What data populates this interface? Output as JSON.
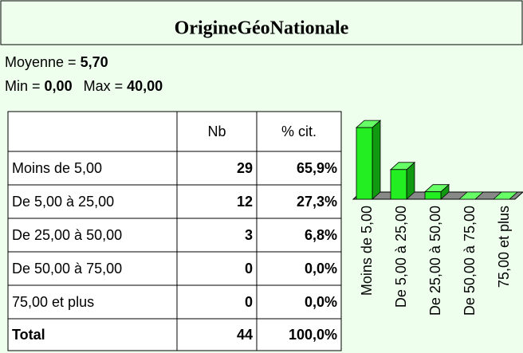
{
  "header": {
    "title": "OrigineGéoNationale"
  },
  "stats": {
    "mean_label": "Moyenne =",
    "mean": "5,70",
    "min_label": "Min =",
    "min": "0,00",
    "max_label": "Max =",
    "max": "40,00"
  },
  "table": {
    "columns": [
      "",
      "Nb",
      "% cit."
    ],
    "rows": [
      [
        "Moins de 5,00",
        "29",
        "65,9%"
      ],
      [
        "De 5,00 à 25,00",
        "12",
        "27,3%"
      ],
      [
        "De 25,00 à 50,00",
        "3",
        "6,8%"
      ],
      [
        "De 50,00 à 75,00",
        "0",
        "0,0%"
      ],
      [
        "75,00 et plus",
        "0",
        "0,0%"
      ],
      [
        "Total",
        "44",
        "100,0%"
      ]
    ]
  },
  "chart_data": {
    "type": "bar3d",
    "categories": [
      "Moins de 5,00",
      "De 5,00 à 25,00",
      "De 25,00 à 50,00",
      "De 50,00 à 75,00",
      "75,00 et plus"
    ],
    "values": [
      29,
      12,
      3,
      0,
      0
    ],
    "color": "#22ee22"
  }
}
